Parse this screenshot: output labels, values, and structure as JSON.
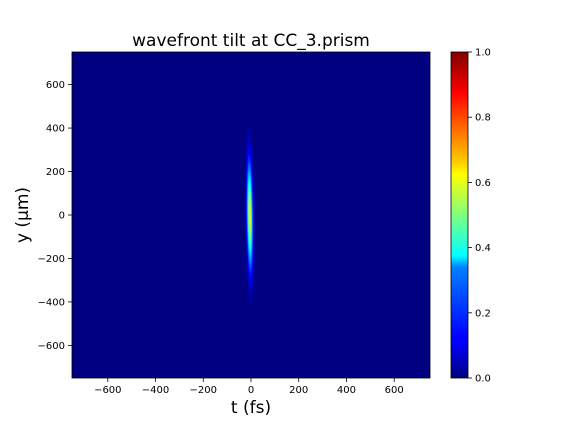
{
  "chart_data": {
    "type": "heatmap",
    "title": "wavefront tilt at CC_3.prism",
    "xlabel": "t (fs)",
    "ylabel": "y (μm)",
    "xlim": [
      -750,
      750
    ],
    "ylim": [
      -750,
      750
    ],
    "x_ticks": [
      -600,
      -400,
      -200,
      0,
      200,
      400,
      600
    ],
    "x_tick_labels": [
      "−600",
      "−400",
      "−200",
      "0",
      "200",
      "400",
      "600"
    ],
    "y_ticks": [
      -600,
      -400,
      -200,
      0,
      200,
      400,
      600
    ],
    "y_tick_labels": [
      "−600",
      "−400",
      "−200",
      "0",
      "200",
      "400",
      "600"
    ],
    "colorbar": {
      "range": [
        0.0,
        1.0
      ],
      "ticks": [
        0.0,
        0.2,
        0.4,
        0.6,
        0.8,
        1.0
      ],
      "tick_labels": [
        "0.0",
        "0.2",
        "0.4",
        "0.6",
        "0.8",
        "1.0"
      ],
      "colormap": "jet"
    },
    "feature": {
      "description_of_signal": "narrow pulse centered near t = 0 fs",
      "center_t_fs": -5,
      "sigma_t_fs": 8,
      "sigma_y_um": 160,
      "peak_value": 0.62,
      "tilt_fs_per_um": -0.01
    },
    "grid": false
  }
}
